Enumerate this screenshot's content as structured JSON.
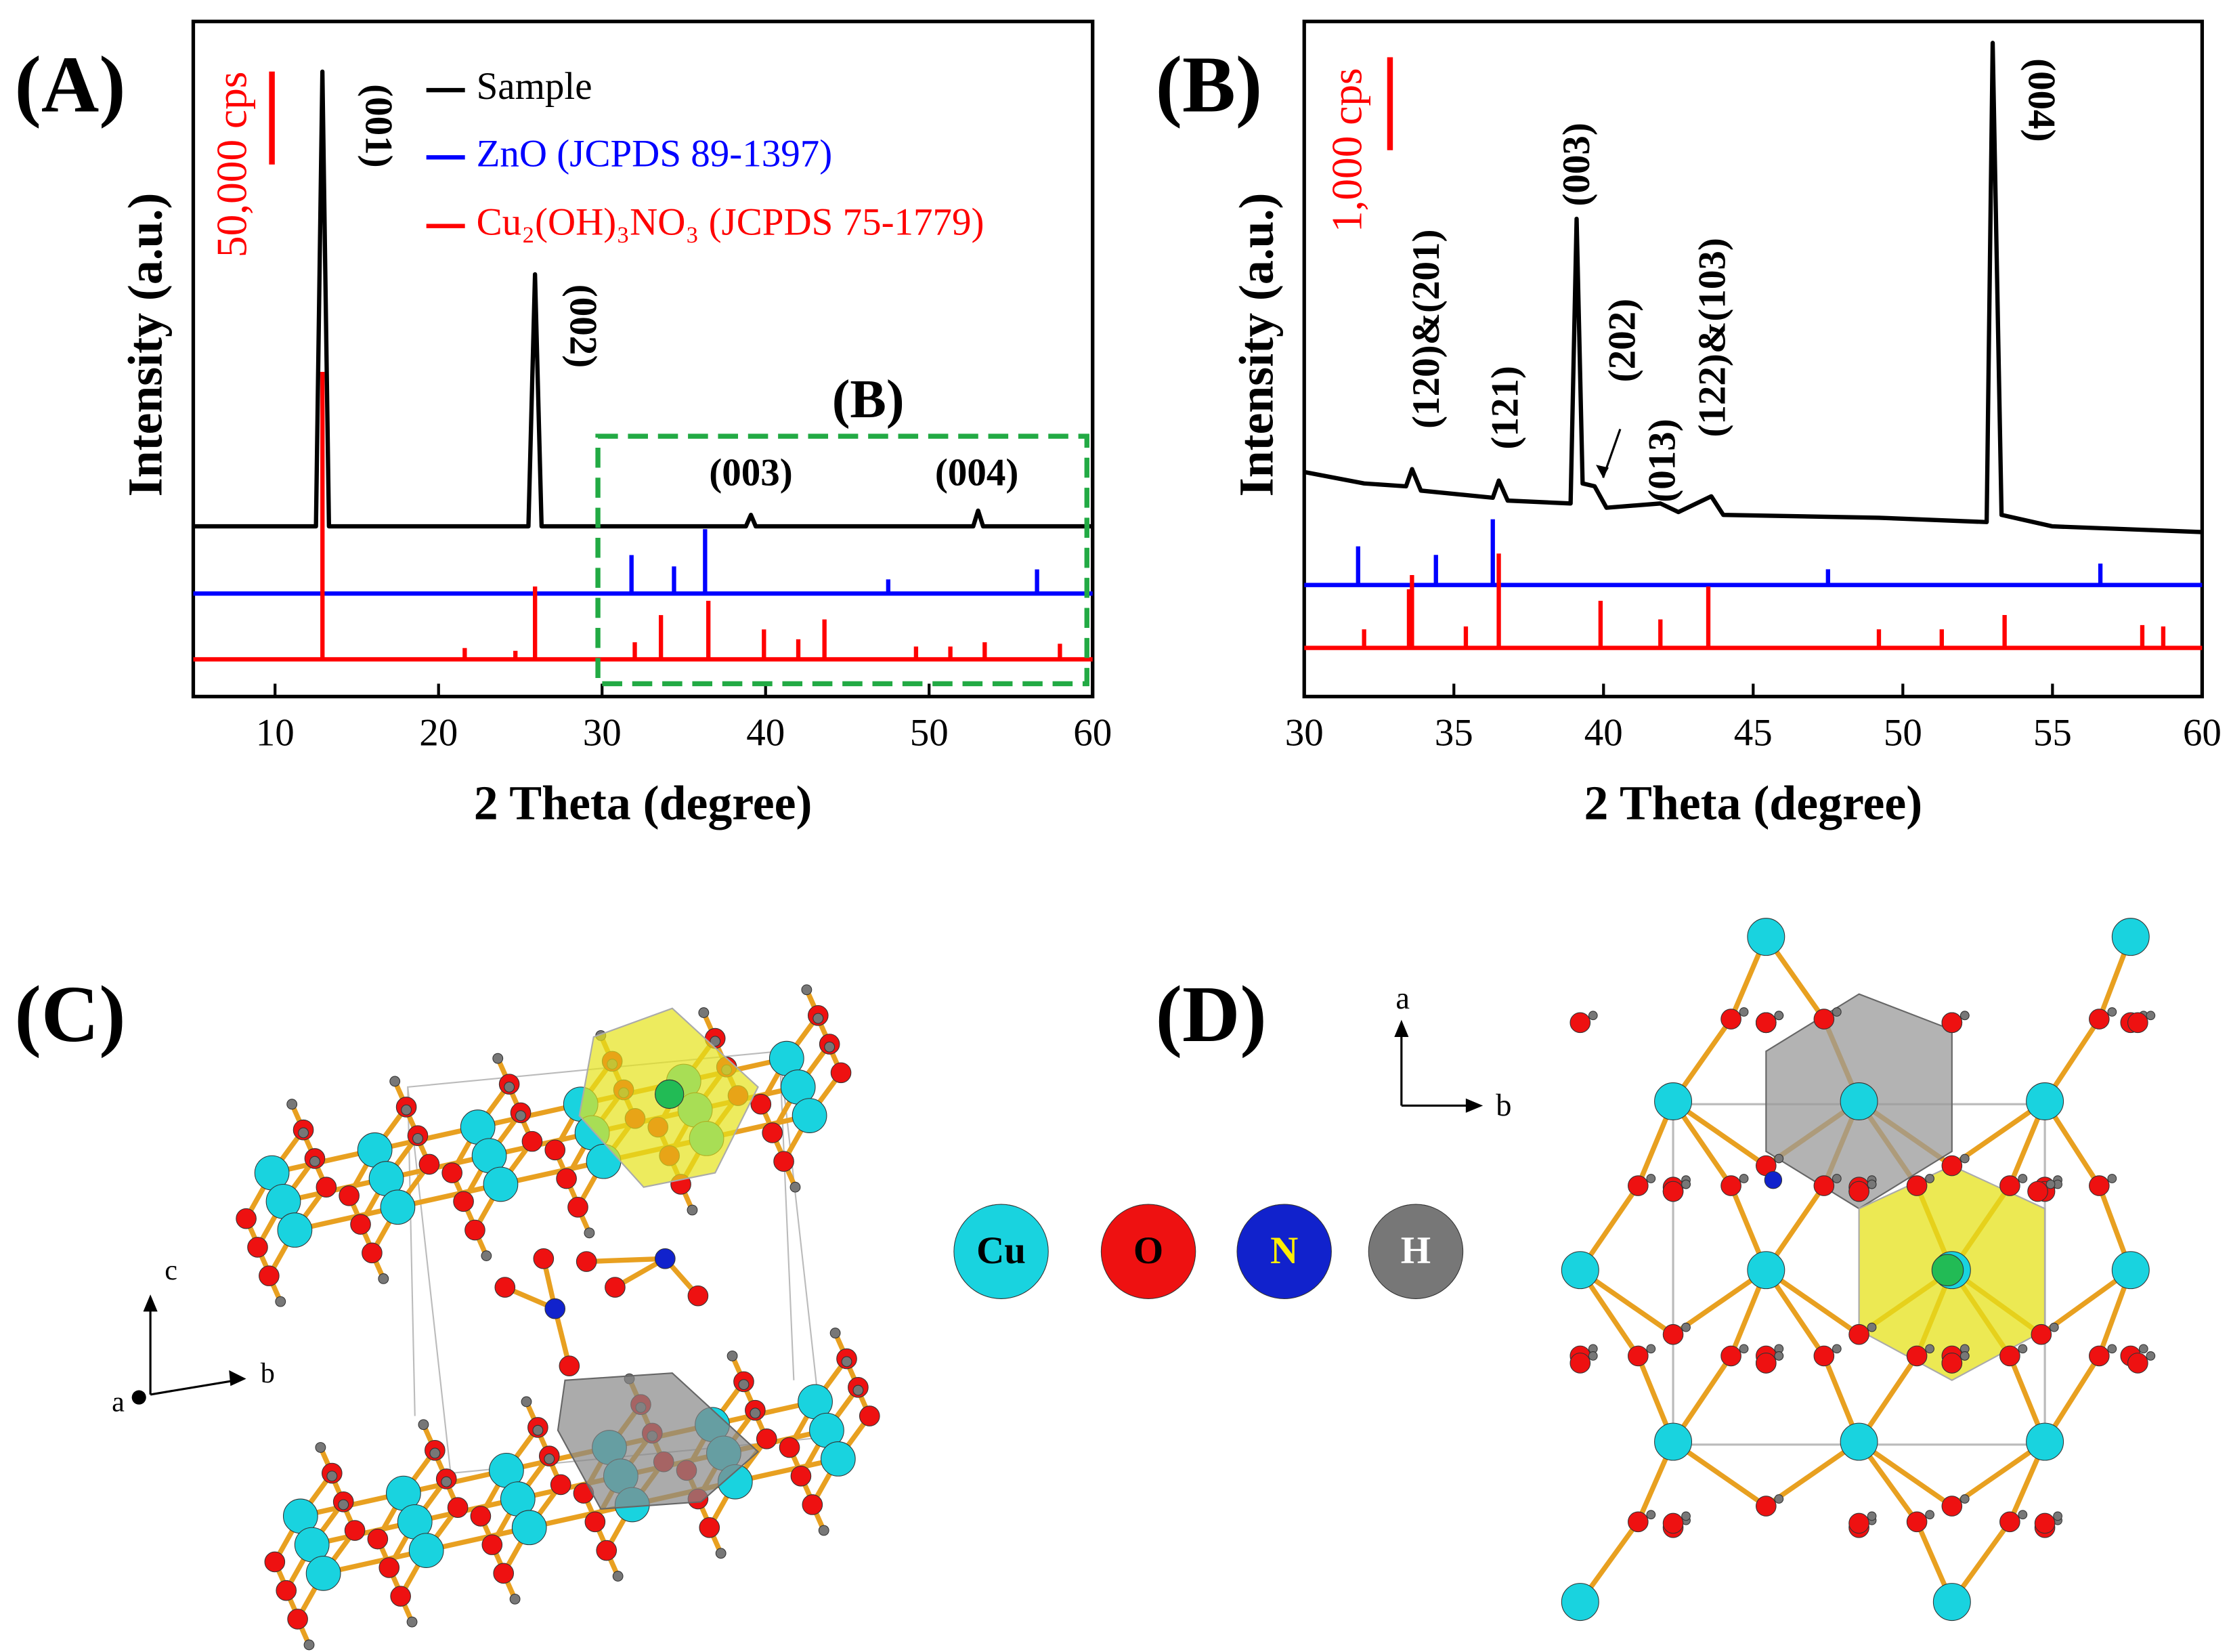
{
  "panel_labels": [
    "(A)",
    "(B)",
    "(C)",
    "(D)"
  ],
  "chart_data": [
    {
      "type": "line",
      "xlabel": "2 Theta (degree)",
      "ylabel": "Intensity (a.u.)",
      "xlim": [
        5,
        60
      ],
      "xticks": [
        10,
        20,
        30,
        40,
        50,
        60
      ],
      "ylim": [
        0,
        363000
      ],
      "scale_bar": {
        "value": 50000,
        "label": "50,000 cps",
        "color": "#ff0000"
      },
      "inset_label": "(B)",
      "annotations": [
        "(001)",
        "(002)",
        "(003)",
        "(004)"
      ],
      "series": [
        {
          "name": "Sample",
          "color": "#000000",
          "style": "line",
          "x": [
            5,
            12.5,
            12.9,
            13.3,
            25.5,
            25.9,
            26.3,
            38.8,
            39.1,
            39.4,
            52.7,
            53.0,
            53.3,
            60
          ],
          "values": [
            91500,
            91500,
            336000,
            91500,
            91500,
            227000,
            91500,
            91500,
            97700,
            91500,
            91500,
            100000,
            91500,
            91500
          ]
        },
        {
          "name": "ZnO (JCPDS 89-1397)",
          "color": "#0000ff",
          "style": "stick",
          "baseline": 55400,
          "x": [
            31.8,
            34.4,
            36.3,
            47.5,
            56.6
          ],
          "values": [
            76100,
            70000,
            90000,
            63000,
            68400
          ]
        },
        {
          "name": "Cu₂(OH)₃NO₃ (JCPDS 75-1779)",
          "color": "#ff0000",
          "style": "stick",
          "baseline": 20000,
          "x": [
            12.9,
            21.6,
            24.7,
            25.9,
            32.0,
            33.6,
            36.5,
            39.9,
            42.0,
            43.6,
            49.2,
            51.3,
            53.4,
            58.0
          ],
          "values": [
            174600,
            26100,
            24600,
            59200,
            29200,
            43800,
            51500,
            36100,
            30800,
            41500,
            26900,
            26900,
            29200,
            28400
          ]
        }
      ]
    },
    {
      "type": "line",
      "xlabel": "2 Theta (degree)",
      "ylabel": "Intensity (a.u.)",
      "xlim": [
        30,
        60
      ],
      "xticks": [
        30,
        35,
        40,
        45,
        50,
        55,
        60
      ],
      "ylim": [
        0,
        7260
      ],
      "scale_bar": {
        "value": 1000,
        "label": "1,000 cps",
        "color": "#ff0000"
      },
      "annotations": [
        "(120)&(201)",
        "(121)",
        "(003)",
        "(202)",
        "(013)",
        "(122)&(103)",
        "(004)"
      ],
      "series": [
        {
          "name": "Sample",
          "color": "#000000",
          "style": "line",
          "x": [
            30,
            32,
            33.4,
            33.6,
            33.9,
            36.3,
            36.5,
            36.8,
            38.9,
            39.1,
            39.3,
            39.7,
            40.1,
            41.9,
            42.5,
            43.6,
            44,
            49.2,
            52.8,
            53.0,
            53.3,
            55,
            60
          ],
          "values": [
            2415,
            2292,
            2261,
            2446,
            2215,
            2138,
            2322,
            2107,
            2076,
            5137,
            2292,
            2261,
            2030,
            2076,
            1984,
            2153,
            1953,
            1922,
            1876,
            7030,
            1953,
            1830,
            1769
          ]
        },
        {
          "name": "ZnO (JCPDS 89-1397)",
          "color": "#0000ff",
          "style": "stick",
          "baseline": 1200,
          "x": [
            31.8,
            34.4,
            36.3,
            47.5,
            56.6
          ],
          "values": [
            1615,
            1523,
            1907,
            1369,
            1430
          ]
        },
        {
          "name": "Cu₂(OH)₃NO₃ (JCPDS 75-1779)",
          "color": "#ff0000",
          "style": "stick",
          "baseline": 523,
          "x": [
            32.0,
            33.5,
            33.6,
            35.4,
            36.5,
            39.9,
            41.9,
            43.5,
            49.2,
            51.3,
            53.4,
            58.0,
            58.7
          ],
          "values": [
            723,
            1154,
            1307,
            754,
            1538,
            1030,
            830,
            1184,
            723,
            723,
            877,
            769,
            754
          ]
        }
      ]
    }
  ],
  "structures": {
    "legend": [
      "Cu",
      "O",
      "N",
      "H"
    ],
    "axes_c": [
      "c",
      "a",
      "b"
    ],
    "axes_d": [
      "a",
      "b"
    ]
  }
}
